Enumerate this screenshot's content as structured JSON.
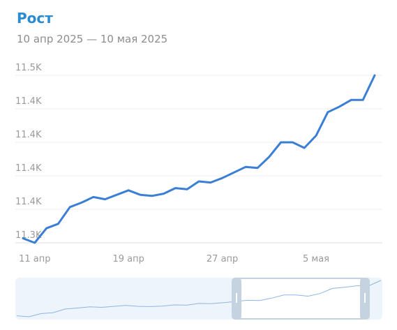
{
  "chart_data": {
    "type": "line",
    "title": "Рост",
    "subtitle": "10 апр 2025 — 10 мая 2025",
    "categories": [
      null,
      "11 апр",
      null,
      null,
      null,
      null,
      null,
      null,
      null,
      "19 апр",
      null,
      null,
      null,
      null,
      null,
      null,
      null,
      "27 апр",
      null,
      null,
      null,
      null,
      null,
      null,
      null,
      "5 мая",
      null,
      null,
      null,
      null,
      null
    ],
    "series": [
      {
        "color": "#3a7fd5",
        "values": [
          11329,
          11325,
          11338,
          11342,
          11357,
          11361,
          11366,
          11364,
          11368,
          11372,
          11368,
          11367,
          11369,
          11374,
          11373,
          11380,
          11379,
          11383,
          11388,
          11393,
          11392,
          11402,
          11415,
          11415,
          11410,
          11421,
          11442,
          11447,
          11453,
          11453,
          11475
        ]
      }
    ],
    "ylim": [
      11325,
      11475
    ],
    "yticks": [
      {
        "value": 11325,
        "label": "11.3K"
      },
      {
        "value": 11355,
        "label": "11.4K"
      },
      {
        "value": 11385,
        "label": "11.4K"
      },
      {
        "value": 11415,
        "label": "11.4K"
      },
      {
        "value": 11445,
        "label": "11.4K"
      },
      {
        "value": 11475,
        "label": "11.5K"
      }
    ],
    "grid": true
  }
}
